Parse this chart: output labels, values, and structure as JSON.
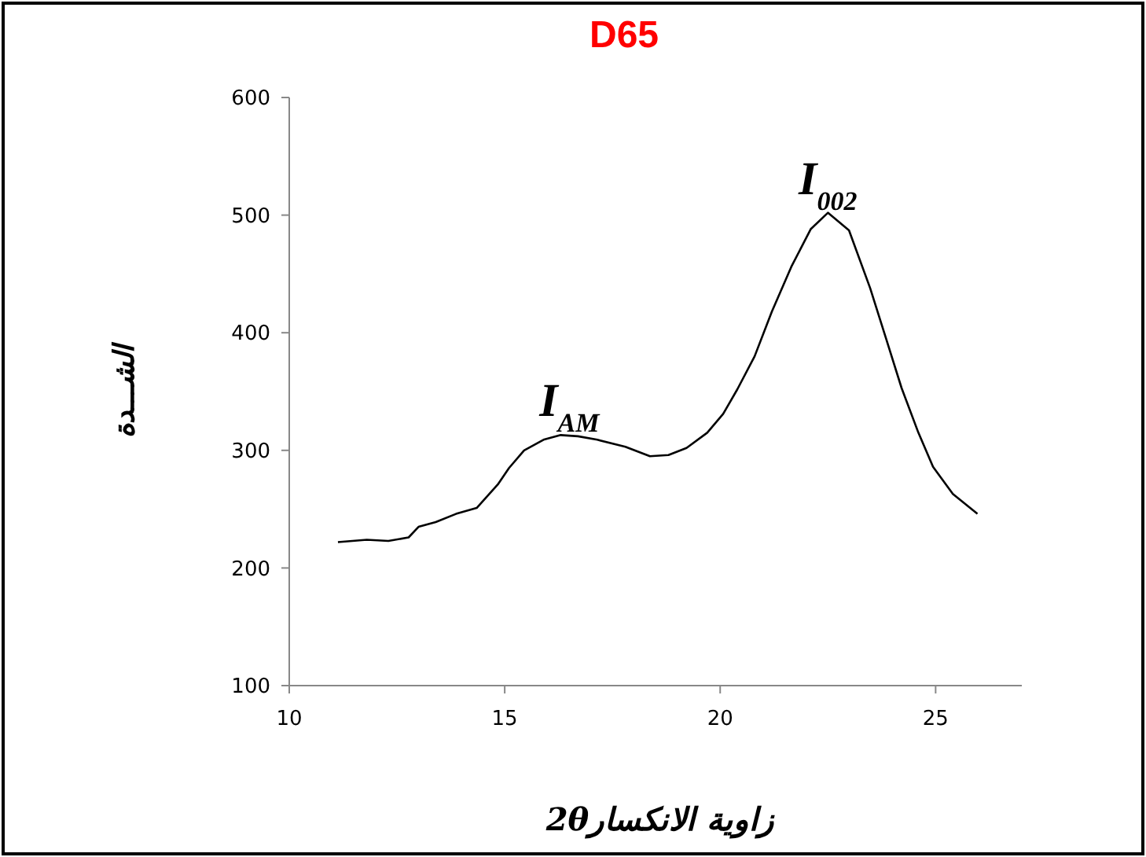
{
  "chart_data": {
    "type": "line",
    "title": "D65",
    "xlabel": "زاوية الانكسار2θ",
    "ylabel": "الشـــدة",
    "x": [
      11.13,
      11.8,
      12.3,
      12.77,
      13.0,
      13.4,
      13.87,
      14.35,
      14.84,
      15.1,
      15.45,
      15.9,
      16.3,
      16.7,
      17.15,
      17.8,
      18.37,
      18.8,
      19.22,
      19.7,
      20.07,
      20.4,
      20.8,
      21.2,
      21.65,
      22.1,
      22.5,
      22.99,
      23.48,
      23.85,
      24.21,
      24.6,
      24.94,
      25.4,
      25.97
    ],
    "series": [
      {
        "color": "#000000",
        "values": [
          222,
          224,
          223,
          226,
          235,
          239,
          246,
          251,
          271,
          285,
          300,
          309,
          313,
          312,
          309,
          303,
          295,
          296,
          302,
          315,
          331,
          352,
          380,
          418,
          456,
          488,
          502,
          487,
          438,
          395,
          353,
          315,
          286,
          263,
          246
        ]
      }
    ],
    "xlim": [
      10,
      27
    ],
    "xticks": [
      10,
      15,
      20,
      25
    ],
    "ylim": [
      100,
      600
    ],
    "yticks": [
      100,
      200,
      300,
      400,
      500,
      600
    ],
    "grid": false,
    "marker": "none",
    "line_style": "solid",
    "annotations": [
      {
        "text": "I$_{AM}$",
        "x": 16.5,
        "y": 313
      },
      {
        "text": "I$_{002}$",
        "x": 22.5,
        "y": 502
      }
    ]
  }
}
